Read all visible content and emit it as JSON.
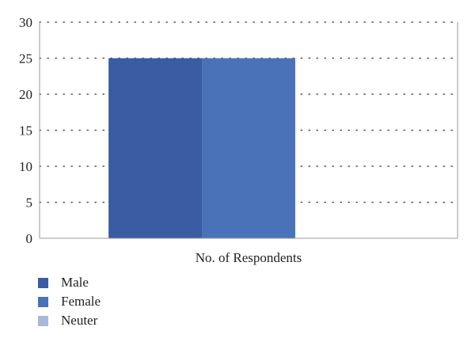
{
  "chart_data": {
    "type": "bar",
    "categories": [
      "No. of Respondents"
    ],
    "series": [
      {
        "name": "Male",
        "values": [
          25
        ],
        "color": "#3a5ca2"
      },
      {
        "name": "Female",
        "values": [
          25
        ],
        "color": "#4a72b8"
      },
      {
        "name": "Neuter",
        "values": [
          0
        ],
        "color": "#a7b8dc"
      }
    ],
    "ylim": [
      0,
      30
    ],
    "yticks": [
      "0",
      "5",
      "10",
      "15",
      "20",
      "25",
      "30"
    ],
    "grid": true,
    "legend_position": "bottom-left"
  }
}
